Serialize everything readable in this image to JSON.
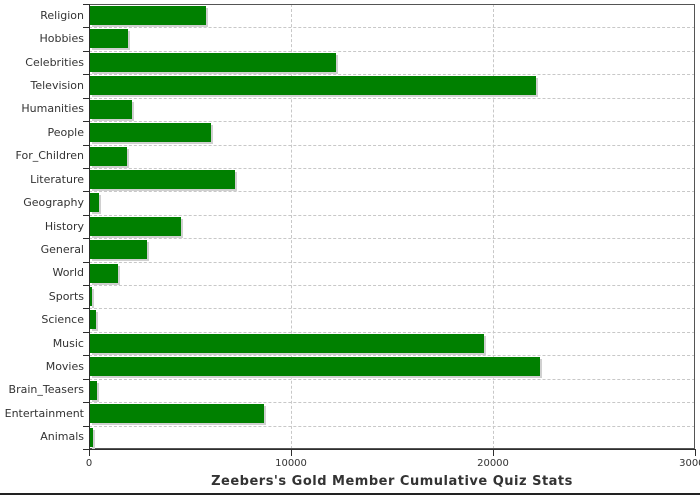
{
  "chart_data": {
    "type": "bar",
    "orientation": "horizontal",
    "title": "Zeebers's Gold Member Cumulative Quiz Stats",
    "categories": [
      "Religion",
      "Hobbies",
      "Celebrities",
      "Television",
      "Humanities",
      "People",
      "For_Children",
      "Literature",
      "Geography",
      "History",
      "General",
      "World",
      "Sports",
      "Science",
      "Music",
      "Movies",
      "Brain_Teasers",
      "Entertainment",
      "Animals"
    ],
    "values": [
      5750,
      1900,
      12200,
      22100,
      2100,
      6000,
      1850,
      7200,
      450,
      4500,
      2800,
      1400,
      100,
      300,
      19500,
      22300,
      350,
      8600,
      150
    ],
    "xlabel": "",
    "ylabel": "",
    "xlim": [
      0,
      30000
    ],
    "x_ticks": [
      0,
      10000,
      20000,
      30000
    ],
    "x_tick_labels": [
      "0",
      "10000",
      "20000",
      "30000"
    ],
    "grid": "dashed horizontal and vertical gridlines",
    "legend": "none",
    "colors": {
      "bar": "#008000",
      "bar_shadow": "#d0d0d0",
      "grid": "#c8c8c8",
      "axis": "#2e2e2e",
      "plot_border": "#555555",
      "text": "#333333",
      "background": "#ffffff"
    }
  }
}
